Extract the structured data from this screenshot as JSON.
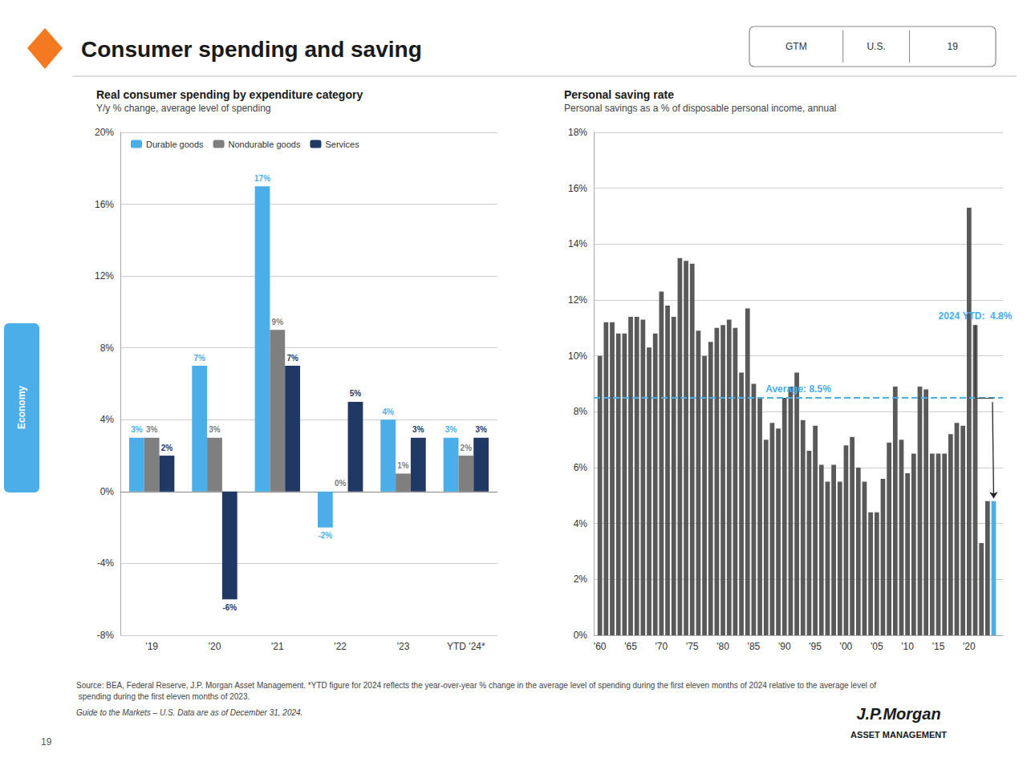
{
  "title": "Consumer spending and saving",
  "badge": [
    "GTM",
    "U.S.",
    "19"
  ],
  "tab": "Economy",
  "footnotes": [
    "Source: BEA, Federal Reserve, J.P. Morgan Asset Management. *YTD figure for 2024 reflects the year-over-year % change in the average level of spending during the first eleven months of 2024 relative to the average level of spending during the first eleven months of 2023.",
    "Guide to the Markets – U.S. Data are as of December 31, 2024."
  ],
  "page_number": "19",
  "logo": [
    "J.P.Morgan",
    "ASSET MANAGEMENT"
  ],
  "chart_data": [
    {
      "type": "bar",
      "title": "Real consumer spending by expenditure category",
      "subtitle": "Y/y % change, average level of spending",
      "categories": [
        "'19",
        "'20",
        "'21",
        "'22",
        "'23",
        "YTD '24*"
      ],
      "series": [
        {
          "name": "Durable goods",
          "color": "#4BAEE8",
          "values": [
            3,
            7,
            17,
            -2,
            4,
            3
          ],
          "value_labels": [
            "3%",
            "7%",
            "17%",
            "-2%",
            "4%",
            "3%"
          ]
        },
        {
          "name": "Nondurable goods",
          "color": "#7F7F7F",
          "values": [
            3,
            3,
            9,
            0,
            1,
            2
          ],
          "value_labels": [
            "3%",
            "3%",
            "9%",
            "0%",
            "1%",
            "2%"
          ]
        },
        {
          "name": "Services",
          "color": "#1F3864",
          "values": [
            2,
            -6,
            7,
            5,
            3,
            3
          ],
          "value_labels": [
            "2%",
            "-6%",
            "7%",
            "5%",
            "3%",
            "3%"
          ]
        }
      ],
      "ylim": [
        -8,
        20
      ],
      "yticks": [
        {
          "value": -8,
          "label": "-8%"
        },
        {
          "value": -4,
          "label": "-4%"
        },
        {
          "value": 0,
          "label": "0%"
        },
        {
          "value": 4,
          "label": "4%"
        },
        {
          "value": 8,
          "label": "8%"
        },
        {
          "value": 12,
          "label": "12%"
        },
        {
          "value": 16,
          "label": "16%"
        },
        {
          "value": 20,
          "label": "20%"
        }
      ],
      "grid": true,
      "legend": "upper left",
      "data_labels": true
    },
    {
      "type": "bar",
      "title": "Personal saving rate",
      "subtitle": "Personal savings as a % of disposable personal income, annual",
      "x": [
        1960,
        1961,
        1962,
        1963,
        1964,
        1965,
        1966,
        1967,
        1968,
        1969,
        1970,
        1971,
        1972,
        1973,
        1974,
        1975,
        1976,
        1977,
        1978,
        1979,
        1980,
        1981,
        1982,
        1983,
        1984,
        1985,
        1986,
        1987,
        1988,
        1989,
        1990,
        1991,
        1992,
        1993,
        1994,
        1995,
        1996,
        1997,
        1998,
        1999,
        2000,
        2001,
        2002,
        2003,
        2004,
        2005,
        2006,
        2007,
        2008,
        2009,
        2010,
        2011,
        2012,
        2013,
        2014,
        2015,
        2016,
        2017,
        2018,
        2019,
        2020,
        2021,
        2022,
        2023,
        2024
      ],
      "values": [
        10.0,
        11.2,
        11.2,
        10.8,
        10.8,
        11.4,
        11.4,
        11.3,
        10.3,
        10.8,
        12.3,
        11.8,
        11.4,
        13.5,
        13.4,
        13.3,
        10.9,
        10.0,
        10.5,
        11.0,
        11.1,
        11.3,
        11.0,
        9.4,
        11.7,
        9.0,
        8.5,
        7.0,
        7.6,
        7.4,
        8.5,
        8.9,
        9.4,
        7.7,
        6.6,
        7.5,
        6.1,
        5.5,
        6.1,
        5.5,
        6.8,
        7.1,
        6.0,
        5.5,
        4.4,
        4.4,
        5.6,
        6.9,
        8.9,
        7.0,
        5.8,
        6.5,
        8.9,
        8.8,
        6.5,
        6.5,
        6.5,
        7.2,
        7.6,
        7.5,
        15.3,
        11.1,
        3.3,
        4.8,
        4.8
      ],
      "colors": [
        "#595959",
        "#595959",
        "#595959",
        "#595959",
        "#595959",
        "#595959",
        "#595959",
        "#595959",
        "#595959",
        "#595959",
        "#595959",
        "#595959",
        "#595959",
        "#595959",
        "#595959",
        "#595959",
        "#595959",
        "#595959",
        "#595959",
        "#595959",
        "#595959",
        "#595959",
        "#595959",
        "#595959",
        "#595959",
        "#595959",
        "#595959",
        "#595959",
        "#595959",
        "#595959",
        "#595959",
        "#595959",
        "#595959",
        "#595959",
        "#595959",
        "#595959",
        "#595959",
        "#595959",
        "#595959",
        "#595959",
        "#595959",
        "#595959",
        "#595959",
        "#595959",
        "#595959",
        "#595959",
        "#595959",
        "#595959",
        "#595959",
        "#595959",
        "#595959",
        "#595959",
        "#595959",
        "#595959",
        "#595959",
        "#595959",
        "#595959",
        "#595959",
        "#595959",
        "#595959",
        "#595959",
        "#595959",
        "#595959",
        "#595959",
        "#4BAEE8"
      ],
      "xlim": [
        1959,
        2025.5
      ],
      "xticks": [
        {
          "value": 1960,
          "label": "'60"
        },
        {
          "value": 1965,
          "label": "'65"
        },
        {
          "value": 1970,
          "label": "'70"
        },
        {
          "value": 1975,
          "label": "'75"
        },
        {
          "value": 1980,
          "label": "'80"
        },
        {
          "value": 1985,
          "label": "'85"
        },
        {
          "value": 1990,
          "label": "'90"
        },
        {
          "value": 1995,
          "label": "'95"
        },
        {
          "value": 2000,
          "label": "'00"
        },
        {
          "value": 2005,
          "label": "'05"
        },
        {
          "value": 2010,
          "label": "'10"
        },
        {
          "value": 2015,
          "label": "'15"
        },
        {
          "value": 2020,
          "label": "'20"
        }
      ],
      "ylim": [
        0,
        18
      ],
      "yticks": [
        {
          "value": 0,
          "label": "0%"
        },
        {
          "value": 2,
          "label": "2%"
        },
        {
          "value": 4,
          "label": "4%"
        },
        {
          "value": 6,
          "label": "6%"
        },
        {
          "value": 8,
          "label": "8%"
        },
        {
          "value": 10,
          "label": "10%"
        },
        {
          "value": 12,
          "label": "12%"
        },
        {
          "value": 14,
          "label": "14%"
        },
        {
          "value": 16,
          "label": "16%"
        },
        {
          "value": 18,
          "label": "18%"
        }
      ],
      "grid": true,
      "average": {
        "value": 8.5,
        "label": "Average: 8.5%",
        "color": "#4BAEE8",
        "line_style": "dashed"
      },
      "annotations": [
        {
          "text": "2024 YTD:  4.8%",
          "color": "#4BAEE8"
        }
      ]
    }
  ]
}
